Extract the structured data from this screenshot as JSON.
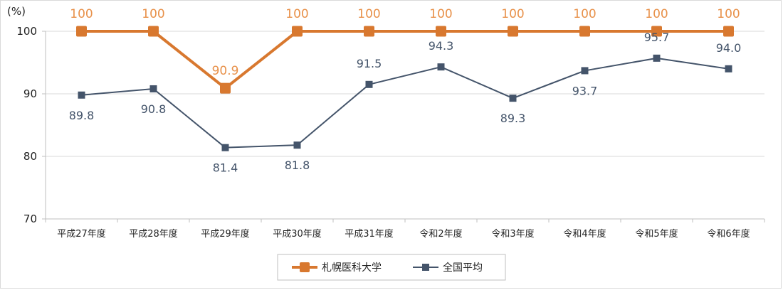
{
  "chart_data": {
    "type": "line",
    "unit_label": "(%)",
    "categories": [
      "平成27年度",
      "平成28年度",
      "平成29年度",
      "平成30年度",
      "平成31年度",
      "令和2年度",
      "令和3年度",
      "令和4年度",
      "令和5年度",
      "令和6年度"
    ],
    "y_ticks": [
      "70",
      "80",
      "90",
      "100"
    ],
    "ylim": [
      70,
      100
    ],
    "grid": true,
    "legend_position": "bottom",
    "series": [
      {
        "name": "札幌医科大学",
        "color": "#D8782F",
        "label_color": "#E8914A",
        "marker": "square",
        "values": [
          100,
          100,
          90.9,
          100,
          100,
          100,
          100,
          100,
          100,
          100
        ],
        "labels": [
          "100",
          "100",
          "90.9",
          "100",
          "100",
          "100",
          "100",
          "100",
          "100",
          "100"
        ]
      },
      {
        "name": "全国平均",
        "color": "#44546A",
        "label_color": "#44546A",
        "marker": "square",
        "values": [
          89.8,
          90.8,
          81.4,
          81.8,
          91.5,
          94.3,
          89.3,
          93.7,
          95.7,
          94.0
        ],
        "labels": [
          "89.8",
          "90.8",
          "81.4",
          "81.8",
          "91.5",
          "94.3",
          "89.3",
          "93.7",
          "95.7",
          "94.0"
        ]
      }
    ]
  }
}
